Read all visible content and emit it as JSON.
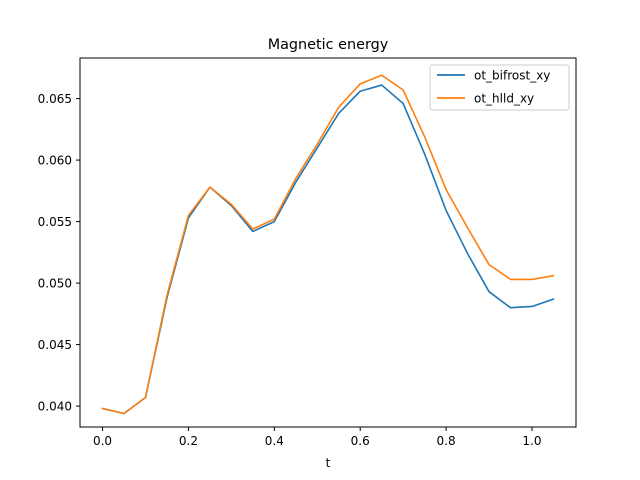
{
  "chart_data": {
    "type": "line",
    "title": "Magnetic energy",
    "xlabel": "t",
    "ylabel": "",
    "xlim": [
      -0.0525,
      1.1025
    ],
    "ylim": [
      0.0383,
      0.0683
    ],
    "x_ticks": [
      0.0,
      0.2,
      0.4,
      0.6,
      0.8,
      1.0
    ],
    "x_tick_labels": [
      "0.0",
      "0.2",
      "0.4",
      "0.6",
      "0.8",
      "1.0"
    ],
    "y_ticks": [
      0.04,
      0.045,
      0.05,
      0.055,
      0.06,
      0.065
    ],
    "y_tick_labels": [
      "0.040",
      "0.045",
      "0.050",
      "0.055",
      "0.060",
      "0.065"
    ],
    "grid": false,
    "legend_position": "top-right",
    "x": [
      0.0,
      0.05,
      0.1,
      0.15,
      0.2,
      0.25,
      0.3,
      0.35,
      0.4,
      0.45,
      0.5,
      0.55,
      0.6,
      0.65,
      0.7,
      0.75,
      0.8,
      0.85,
      0.9,
      0.95,
      1.0,
      1.05
    ],
    "series": [
      {
        "name": "ot_bifrost_xy",
        "color": "#1f77b4",
        "values": [
          0.0398,
          0.0394,
          0.0407,
          0.0488,
          0.0553,
          0.0578,
          0.0563,
          0.0542,
          0.055,
          0.0582,
          0.061,
          0.0638,
          0.0656,
          0.0661,
          0.0646,
          0.0605,
          0.0559,
          0.0524,
          0.0493,
          0.048,
          0.0481,
          0.0487
        ]
      },
      {
        "name": "ot_hlld_xy",
        "color": "#ff7f0e",
        "values": [
          0.0398,
          0.0394,
          0.0407,
          0.049,
          0.0555,
          0.0578,
          0.0564,
          0.0544,
          0.0552,
          0.0585,
          0.0613,
          0.0643,
          0.0662,
          0.0669,
          0.0657,
          0.0619,
          0.0576,
          0.0545,
          0.0515,
          0.0503,
          0.0503,
          0.0506
        ]
      }
    ]
  }
}
